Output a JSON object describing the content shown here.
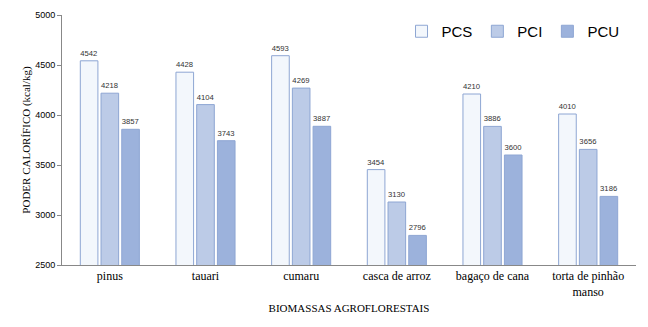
{
  "chart_data": {
    "type": "bar",
    "x_label": "BIOMASSAS AGROFLORESTAIS",
    "y_label": "PODER CALORÍFICO (kcal/kg)",
    "categories": [
      "pinus",
      "tauari",
      "cumaru",
      "casca de arroz",
      "bagaço de cana",
      "torta de pinhão manso"
    ],
    "series": [
      {
        "name": "PCS",
        "color": "#f3f7fc",
        "values": [
          4542,
          4428,
          4593,
          3454,
          4210,
          4010
        ]
      },
      {
        "name": "PCI",
        "color": "#bccbe7",
        "values": [
          4218,
          4104,
          4269,
          3130,
          3886,
          3656
        ]
      },
      {
        "name": "PCU",
        "color": "#9cb2dc",
        "values": [
          3857,
          3743,
          3887,
          2796,
          3600,
          3186
        ]
      }
    ],
    "ylim": [
      2500,
      5000
    ],
    "yticks": [
      2500,
      3000,
      3500,
      4000,
      4500,
      5000
    ],
    "grid": false,
    "legend": "top right",
    "data_labels": true
  }
}
